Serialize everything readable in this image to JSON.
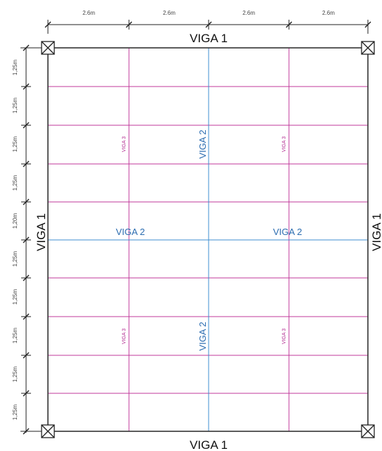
{
  "colors": {
    "frame": "#333333",
    "viga2": "#3f8fd0",
    "viga3": "#c0399b",
    "dimension": "#222222"
  },
  "dimensions": {
    "top": [
      "2.6m",
      "2.6m",
      "2.6m",
      "2.6m"
    ],
    "left": [
      "1,25m",
      "1,25m",
      "1,25m",
      "1,25m",
      "1,20m",
      "1,25m",
      "1,25m",
      "1,25m",
      "1,25m",
      "1,25m"
    ]
  },
  "beams": {
    "viga1": "VIGA 1",
    "viga2": "VIGA 2",
    "viga3": "VIGA 3"
  },
  "columns": {
    "icon": "column-square-x-icon"
  }
}
